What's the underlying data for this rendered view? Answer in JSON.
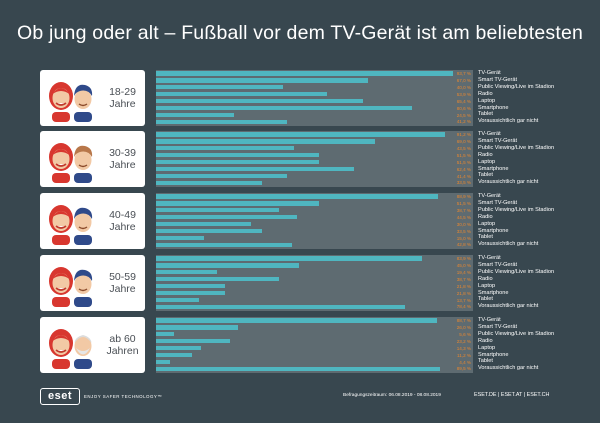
{
  "title": "Ob jung oder alt – Fußball vor dem TV-Gerät ist am beliebtesten",
  "legend_labels": [
    "TV-Gerät",
    "Smart TV-Gerät",
    "Public Viewing/Live im Stadion",
    "Radio",
    "Laptop",
    "Smartphone",
    "Tablet",
    "Voraussichtlich gar nicht"
  ],
  "colors": {
    "background": "#38474f",
    "bar": "#4fb6c0",
    "track": "#5e6b71",
    "value": "#e8872f",
    "card": "#ffffff"
  },
  "chart_data": [
    {
      "type": "bar",
      "orientation": "horizontal",
      "group": "18-29 Jahre",
      "categories": [
        "TV-Gerät",
        "Smart TV-Gerät",
        "Public Viewing/Live im Stadion",
        "Radio",
        "Laptop",
        "Smartphone",
        "Tablet",
        "Voraussichtlich gar nicht"
      ],
      "values": [
        93.7,
        67.0,
        40.0,
        53.9,
        65.4,
        80.6,
        24.5,
        41.2
      ],
      "value_labels": [
        "93,7 %",
        "67,0 %",
        "40,0 %",
        "53,9 %",
        "65,4 %",
        "80,6 %",
        "24,5 %",
        "41,2 %"
      ],
      "xlim": [
        0,
        100
      ]
    },
    {
      "type": "bar",
      "orientation": "horizontal",
      "group": "30-39 Jahre",
      "categories": [
        "TV-Gerät",
        "Smart TV-Gerät",
        "Public Viewing/Live im Stadion",
        "Radio",
        "Laptop",
        "Smartphone",
        "Tablet",
        "Voraussichtlich gar nicht"
      ],
      "values": [
        91.2,
        69.0,
        43.5,
        51.5,
        51.5,
        62.4,
        41.4,
        33.5
      ],
      "value_labels": [
        "91,2 %",
        "69,0 %",
        "43,5 %",
        "51,5 %",
        "51,5 %",
        "62,4 %",
        "41,4 %",
        "33,5 %"
      ],
      "xlim": [
        0,
        100
      ]
    },
    {
      "type": "bar",
      "orientation": "horizontal",
      "group": "40-49 Jahre",
      "categories": [
        "TV-Gerät",
        "Smart TV-Gerät",
        "Public Viewing/Live im Stadion",
        "Radio",
        "Laptop",
        "Smartphone",
        "Tablet",
        "Voraussichtlich gar nicht"
      ],
      "values": [
        88.9,
        51.5,
        38.7,
        44.5,
        30.0,
        33.5,
        15.0,
        42.8
      ],
      "value_labels": [
        "88,9 %",
        "51,5 %",
        "38,7 %",
        "44,5 %",
        "30,0 %",
        "33,5 %",
        "15,0 %",
        "42,8 %"
      ],
      "xlim": [
        0,
        100
      ]
    },
    {
      "type": "bar",
      "orientation": "horizontal",
      "group": "50-59 Jahre",
      "categories": [
        "TV-Gerät",
        "Smart TV-Gerät",
        "Public Viewing/Live im Stadion",
        "Radio",
        "Laptop",
        "Smartphone",
        "Tablet",
        "Voraussichtlich gar nicht"
      ],
      "values": [
        83.9,
        45.0,
        19.4,
        38.7,
        21.8,
        21.8,
        13.7,
        78.4
      ],
      "value_labels": [
        "83,9 %",
        "45,0 %",
        "19,4 %",
        "38,7 %",
        "21,8 %",
        "21,8 %",
        "13,7 %",
        "78,4 %"
      ],
      "xlim": [
        0,
        100
      ]
    },
    {
      "type": "bar",
      "orientation": "horizontal",
      "group": "ab 60 Jahren",
      "categories": [
        "TV-Gerät",
        "Smart TV-Gerät",
        "Public Viewing/Live im Stadion",
        "Radio",
        "Laptop",
        "Smartphone",
        "Tablet",
        "Voraussichtlich gar nicht"
      ],
      "values": [
        88.7,
        26.0,
        5.6,
        23.2,
        14.3,
        11.2,
        4.4,
        89.5
      ],
      "value_labels": [
        "88,7 %",
        "26,0 %",
        "5,6 %",
        "23,2 %",
        "14,3 %",
        "11,2 %",
        "4,4 %",
        "89,5 %"
      ],
      "xlim": [
        0,
        100
      ]
    }
  ],
  "groups": [
    {
      "line1": "18-29",
      "line2": "Jahre"
    },
    {
      "line1": "30-39",
      "line2": "Jahre"
    },
    {
      "line1": "40-49",
      "line2": "Jahre"
    },
    {
      "line1": "50-59",
      "line2": "Jahre"
    },
    {
      "line1": "ab 60",
      "line2": "Jahren"
    }
  ],
  "footer": {
    "logo": "eset",
    "tagline": "ENJOY SAFER TECHNOLOGY™",
    "survey_period": "Befragungszeitraum: 06.08.2019 - 08.08.2019",
    "sites": "ESET.DE | ESET.AT | ESET.CH"
  }
}
